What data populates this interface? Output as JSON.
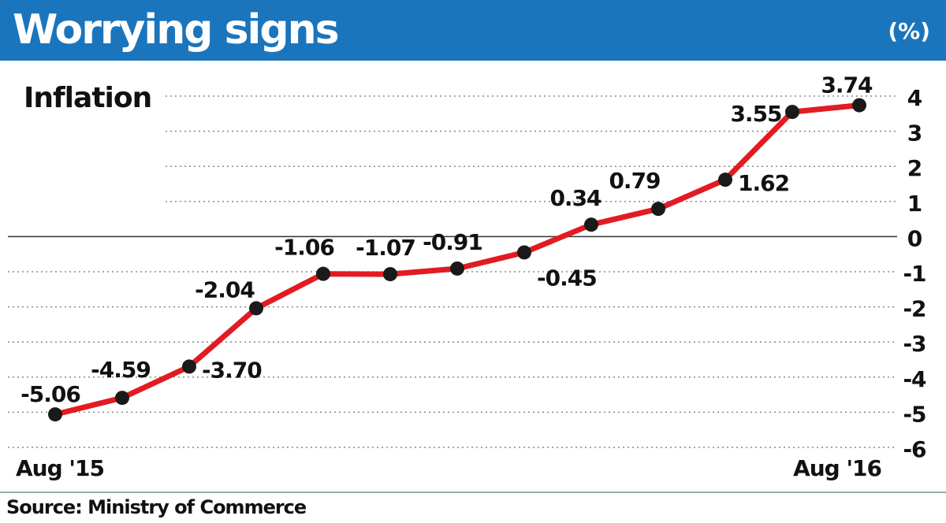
{
  "header": {
    "title": "Worrying signs",
    "unit": "(%)"
  },
  "source": "Source: Ministry of Commerce",
  "colors": {
    "header_bg": "#1b75bc",
    "line": "#e21b23",
    "marker": "#1a1a1a"
  },
  "chart_data": {
    "type": "line",
    "title": "Inflation",
    "x": [
      "Aug '15",
      "",
      "",
      "",
      "",
      "",
      "",
      "",
      "",
      "",
      "",
      "",
      "Aug '16"
    ],
    "x_tick_labels": [
      "Aug '15",
      "Aug '16"
    ],
    "series": [
      {
        "values": [
          -5.06,
          -4.59,
          -3.7,
          -2.04,
          -1.06,
          -1.07,
          -0.91,
          -0.45,
          0.34,
          0.79,
          1.62,
          3.55,
          3.74
        ]
      }
    ],
    "data_labels": [
      "-5.06",
      "-4.59",
      "-3.70",
      "-2.04",
      "-1.06",
      "-1.07",
      "-0.91",
      "-0.45",
      "0.34",
      "0.79",
      "1.62",
      "3.55",
      "3.74"
    ],
    "y_ticks": [
      "4",
      "3",
      "2",
      "1",
      "0",
      "-1",
      "-2",
      "-3",
      "-4",
      "-5",
      "-6"
    ],
    "ylim": [
      -6,
      4
    ],
    "y_axis_position": "right",
    "grid": "dotted horizontal"
  }
}
